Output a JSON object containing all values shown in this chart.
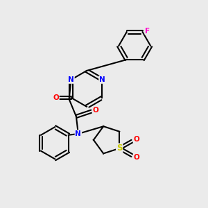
{
  "background_color": "#ebebeb",
  "bond_color": "#000000",
  "atom_colors": {
    "N": "#0000ff",
    "O": "#ff0000",
    "F": "#ff00cc",
    "S": "#cccc00",
    "C": "#000000"
  }
}
